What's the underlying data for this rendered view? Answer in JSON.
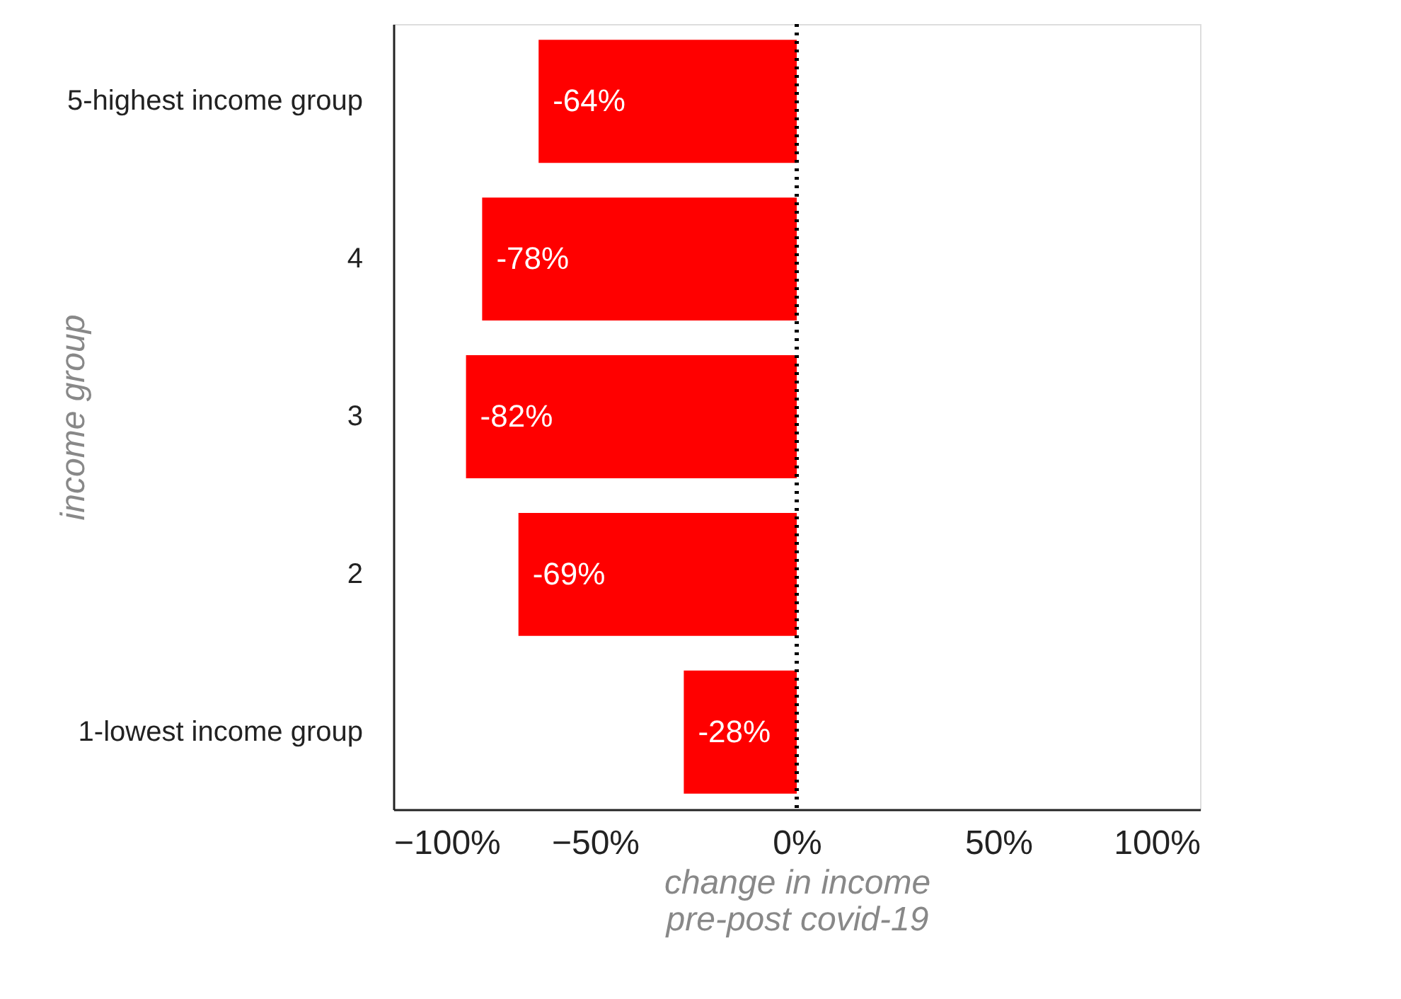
{
  "chart_data": {
    "type": "bar",
    "orientation": "horizontal",
    "xlabel": "change in income\npre-post covid-19",
    "ylabel": "income group",
    "categories": [
      "5-highest income group",
      "4",
      "3",
      "2",
      "1-lowest income group"
    ],
    "values": [
      -64,
      -78,
      -82,
      -69,
      -28
    ],
    "color": "#ff0000",
    "value_labels": [
      "-64%",
      "-78%",
      "-82%",
      "-69%",
      "-28%"
    ],
    "xlim": [
      -100,
      100
    ],
    "xticks": [
      {
        "value": -100,
        "label": "−100%"
      },
      {
        "value": -50,
        "label": "−50%"
      },
      {
        "value": 0,
        "label": "0%"
      },
      {
        "value": 50,
        "label": "50%"
      },
      {
        "value": 100,
        "label": "100%"
      }
    ],
    "ref_lines": [
      {
        "axis": "x",
        "value": 0,
        "color": "#000000",
        "line_style": "dotted"
      }
    ],
    "grid": false
  }
}
